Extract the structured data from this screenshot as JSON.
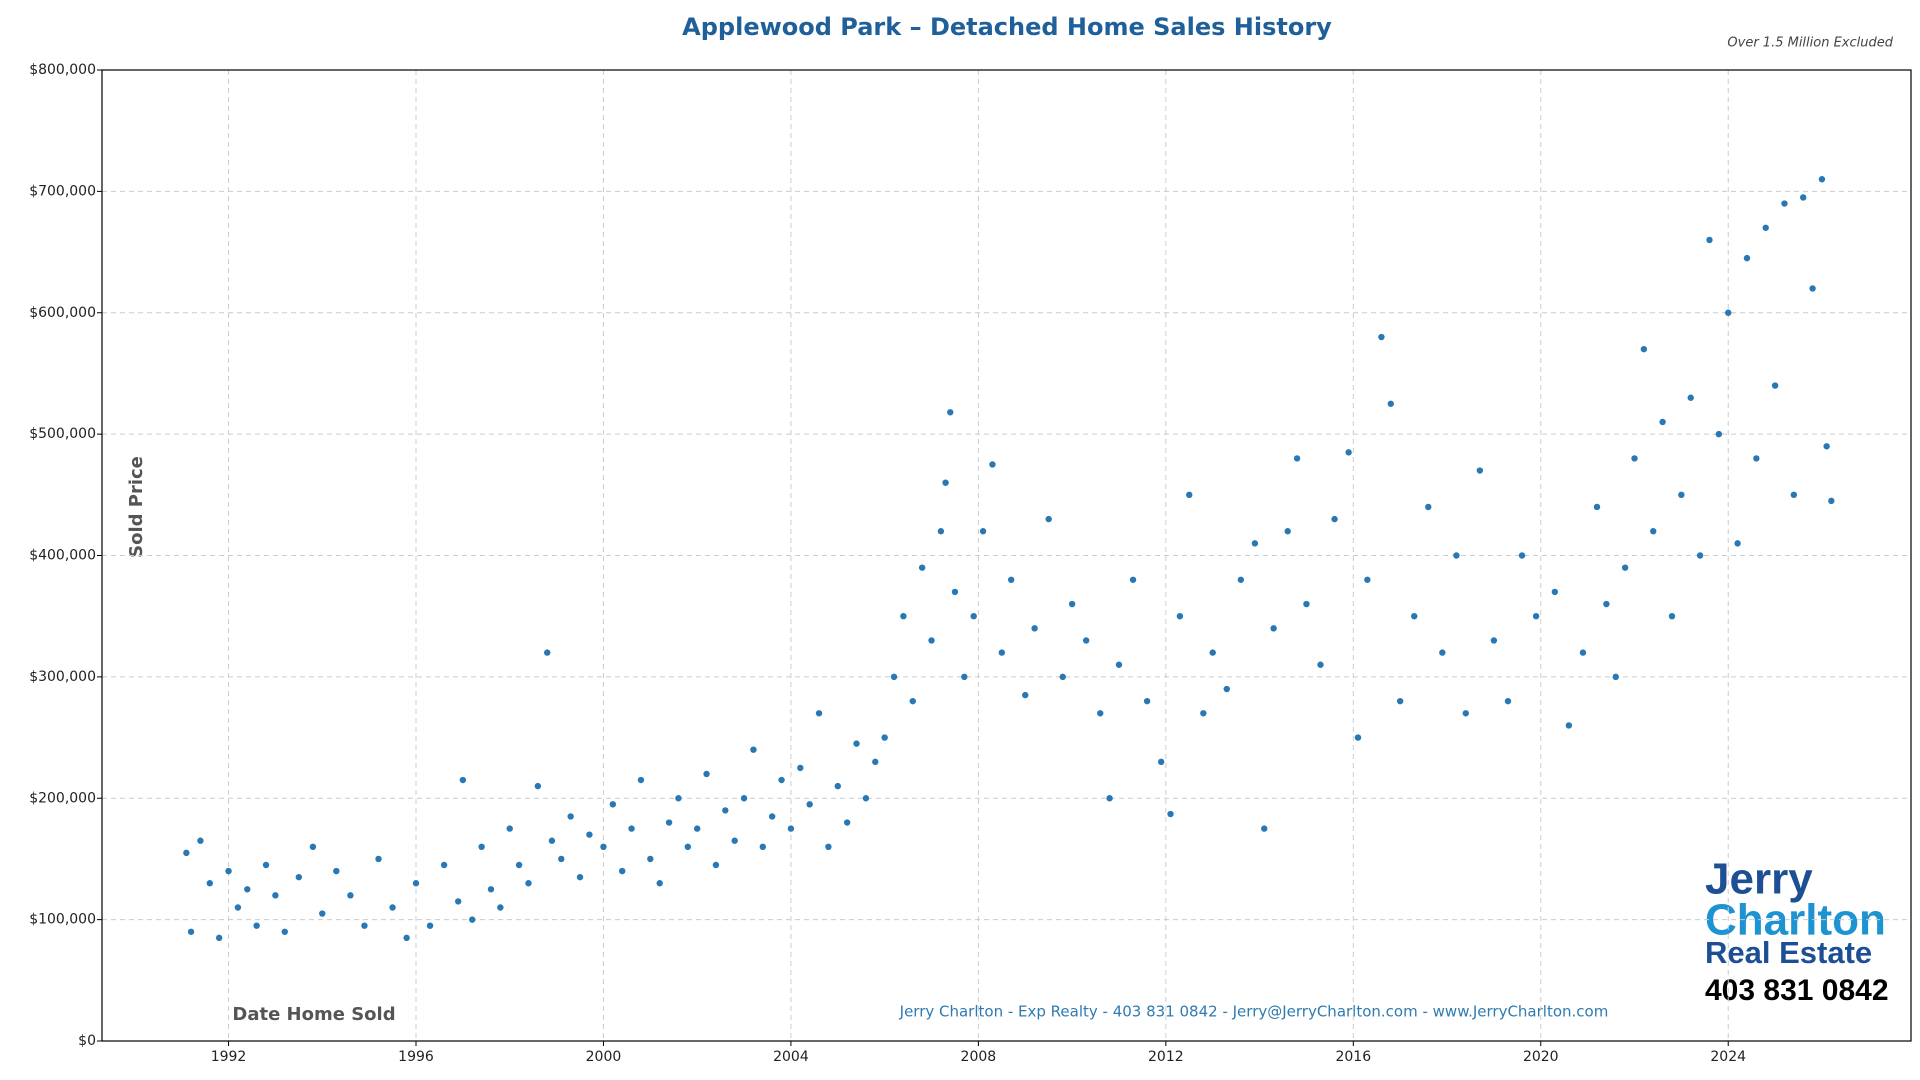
{
  "chart_data": {
    "type": "scatter",
    "title": "Applewood Park – Detached Home Sales History",
    "note": "Over 1.5 Million Excluded",
    "y_label": "Sold Price",
    "x_label": "Date Home Sold",
    "footer": "Jerry Charlton - Exp Realty - 403 831 0842 - Jerry@JerryCharlton.com - www.JerryCharlton.com",
    "logo": {
      "line1": "Jerry",
      "line2": "Charlton",
      "line3": "Real Estate",
      "phone": "403 831 0842"
    },
    "color": "#2878b5",
    "grid": true,
    "xlim": [
      1989.3,
      2027.9
    ],
    "ylim": [
      0,
      800000
    ],
    "xticks": [
      1992,
      1996,
      2000,
      2004,
      2008,
      2012,
      2016,
      2020,
      2024
    ],
    "yticks": [
      {
        "value": 0,
        "label": "$0"
      },
      {
        "value": 100000,
        "label": "$100,000"
      },
      {
        "value": 200000,
        "label": "$200,000"
      },
      {
        "value": 300000,
        "label": "$300,000"
      },
      {
        "value": 400000,
        "label": "$400,000"
      },
      {
        "value": 500000,
        "label": "$500,000"
      },
      {
        "value": 600000,
        "label": "$600,000"
      },
      {
        "value": 700000,
        "label": "$700,000"
      },
      {
        "value": 800000,
        "label": "$800,000"
      }
    ],
    "x": [
      1991.1,
      1991.2,
      1991.4,
      1991.6,
      1991.8,
      1992.0,
      1992.2,
      1992.4,
      1992.6,
      1992.8,
      1993.0,
      1993.2,
      1993.5,
      1993.8,
      1994.0,
      1994.3,
      1994.6,
      1994.9,
      1995.2,
      1995.5,
      1995.8,
      1996.0,
      1996.3,
      1996.6,
      1996.9,
      1997.0,
      1997.2,
      1997.4,
      1997.6,
      1997.8,
      1998.0,
      1998.2,
      1998.4,
      1998.6,
      1998.8,
      1998.9,
      1999.1,
      1999.3,
      1999.5,
      1999.7,
      2000.0,
      2000.2,
      2000.4,
      2000.6,
      2000.8,
      2001.0,
      2001.2,
      2001.4,
      2001.6,
      2001.8,
      2002.0,
      2002.2,
      2002.4,
      2002.6,
      2002.8,
      2003.0,
      2003.2,
      2003.4,
      2003.6,
      2003.8,
      2004.0,
      2004.2,
      2004.4,
      2004.6,
      2004.8,
      2005.0,
      2005.2,
      2005.4,
      2005.6,
      2005.8,
      2006.0,
      2006.2,
      2006.4,
      2006.6,
      2006.8,
      2007.0,
      2007.2,
      2007.3,
      2007.4,
      2007.5,
      2007.7,
      2007.9,
      2008.1,
      2008.3,
      2008.5,
      2008.7,
      2009.0,
      2009.2,
      2009.5,
      2009.8,
      2010.0,
      2010.3,
      2010.6,
      2010.8,
      2011.0,
      2011.3,
      2011.6,
      2011.9,
      2012.1,
      2012.3,
      2012.5,
      2012.8,
      2013.0,
      2013.3,
      2013.6,
      2013.9,
      2014.1,
      2014.3,
      2014.6,
      2014.8,
      2015.0,
      2015.3,
      2015.6,
      2015.9,
      2016.1,
      2016.3,
      2016.6,
      2016.8,
      2017.0,
      2017.3,
      2017.6,
      2017.9,
      2018.2,
      2018.4,
      2018.7,
      2019.0,
      2019.3,
      2019.6,
      2019.9,
      2020.3,
      2020.6,
      2020.9,
      2021.2,
      2021.4,
      2021.6,
      2021.8,
      2022.0,
      2022.2,
      2022.4,
      2022.6,
      2022.8,
      2023.0,
      2023.2,
      2023.4,
      2023.6,
      2023.8,
      2024.0,
      2024.2,
      2024.4,
      2024.6,
      2024.8,
      2025.0,
      2025.2,
      2025.4,
      2025.6,
      2025.8,
      2026.0,
      2026.1,
      2026.2
    ],
    "values": [
      155000,
      90000,
      165000,
      130000,
      85000,
      140000,
      110000,
      125000,
      95000,
      145000,
      120000,
      90000,
      135000,
      160000,
      105000,
      140000,
      120000,
      95000,
      150000,
      110000,
      85000,
      130000,
      95000,
      145000,
      115000,
      215000,
      100000,
      160000,
      125000,
      110000,
      175000,
      145000,
      130000,
      210000,
      320000,
      165000,
      150000,
      185000,
      135000,
      170000,
      160000,
      195000,
      140000,
      175000,
      215000,
      150000,
      130000,
      180000,
      200000,
      160000,
      175000,
      220000,
      145000,
      190000,
      165000,
      200000,
      240000,
      160000,
      185000,
      215000,
      175000,
      225000,
      195000,
      270000,
      160000,
      210000,
      180000,
      245000,
      200000,
      230000,
      250000,
      300000,
      350000,
      280000,
      390000,
      330000,
      420000,
      460000,
      518000,
      370000,
      300000,
      350000,
      420000,
      475000,
      320000,
      380000,
      285000,
      340000,
      430000,
      300000,
      360000,
      330000,
      270000,
      200000,
      310000,
      380000,
      280000,
      230000,
      187000,
      350000,
      450000,
      270000,
      320000,
      290000,
      380000,
      410000,
      175000,
      340000,
      420000,
      480000,
      360000,
      310000,
      430000,
      485000,
      250000,
      380000,
      580000,
      525000,
      280000,
      350000,
      440000,
      320000,
      400000,
      270000,
      470000,
      330000,
      280000,
      400000,
      350000,
      370000,
      260000,
      320000,
      440000,
      360000,
      300000,
      390000,
      480000,
      570000,
      420000,
      510000,
      350000,
      450000,
      530000,
      400000,
      660000,
      500000,
      600000,
      410000,
      645000,
      480000,
      670000,
      540000,
      690000,
      450000,
      695000,
      620000,
      710000,
      490000,
      445000
    ]
  }
}
